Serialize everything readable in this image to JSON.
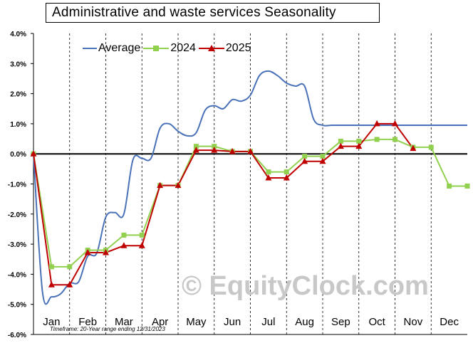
{
  "title": "Administrative and waste services Seasonality",
  "footnote": "Timeframe: 20-Year range ending 12/31/2023",
  "watermark": "© EquityClock.com",
  "colors": {
    "average": "#4a72b8",
    "y2024": "#92d050",
    "y2025": "#c00000",
    "grid": "#000000",
    "zero_line": "#000000"
  },
  "chart_data": {
    "type": "line",
    "title": "Administrative and waste services Seasonality",
    "xlabel": "",
    "ylabel": "",
    "ylim": [
      -6.0,
      4.0
    ],
    "yticks": [
      "4.0%",
      "3.0%",
      "2.0%",
      "1.0%",
      "0.0%",
      "-1.0%",
      "-2.0%",
      "-3.0%",
      "-4.0%",
      "-5.0%",
      "-6.0%"
    ],
    "categories": [
      "Jan",
      "Feb",
      "Mar",
      "Apr",
      "May",
      "Jun",
      "Jul",
      "Aug",
      "Sep",
      "Oct",
      "Nov",
      "Dec"
    ],
    "x_range": [
      0,
      24
    ],
    "grid": "vertical dashed at month boundaries",
    "legend_position": "top-left",
    "series": [
      {
        "name": "Average",
        "style": "smooth",
        "x": [
          0,
          0.5,
          1,
          1.5,
          2,
          2.5,
          3,
          3.5,
          4,
          4.5,
          5,
          5.5,
          6,
          6.5,
          7,
          7.5,
          8,
          8.5,
          9,
          9.5,
          10,
          10.5,
          11,
          11.5,
          12,
          12.5,
          13,
          13.5,
          14,
          14.5,
          15,
          15.5,
          16,
          16.5,
          17,
          17.5,
          18,
          18.5,
          19,
          19.5,
          20,
          20.5,
          21,
          21.5,
          22,
          22.5,
          23,
          23.5,
          24
        ],
        "values": [
          0.0,
          -4.6,
          -4.75,
          -4.65,
          -4.3,
          -4.25,
          -3.4,
          -3.3,
          -2.1,
          -1.95,
          -2.0,
          -0.2,
          -0.15,
          -0.15,
          0.85,
          1.0,
          0.75,
          0.6,
          0.7,
          1.45,
          1.6,
          1.5,
          1.8,
          1.75,
          1.95,
          2.6,
          2.75,
          2.6,
          2.35,
          2.25,
          2.25,
          1.15,
          0.95,
          0.95,
          0.95,
          0.95,
          0.95,
          0.95,
          0.95,
          0.95,
          0.95,
          0.95,
          0.95,
          0.95,
          0.95,
          0.95,
          0.95,
          0.95,
          0.95
        ]
      },
      {
        "name": "2024",
        "marker": "square",
        "x": [
          0,
          1,
          2,
          3,
          4,
          5,
          6,
          7,
          8,
          9,
          10,
          11,
          12,
          13,
          14,
          15,
          16,
          17,
          18,
          19,
          20,
          21,
          22,
          23,
          24
        ],
        "values": [
          0.0,
          -3.75,
          -3.75,
          -3.2,
          -3.2,
          -2.7,
          -2.7,
          -1.05,
          -1.05,
          0.25,
          0.25,
          0.08,
          0.08,
          -0.6,
          -0.6,
          -0.08,
          -0.08,
          0.42,
          0.42,
          0.48,
          0.48,
          0.22,
          0.22,
          -1.07,
          -1.07
        ]
      },
      {
        "name": "2025",
        "marker": "triangle",
        "x": [
          0,
          1,
          2,
          3,
          4,
          5,
          6,
          7,
          8,
          9,
          10,
          11,
          12,
          13,
          14,
          15,
          16,
          17,
          18,
          19,
          20,
          21,
          22
        ],
        "values": [
          0.0,
          -4.35,
          -4.35,
          -3.28,
          -3.28,
          -3.05,
          -3.05,
          -1.05,
          -1.05,
          0.12,
          0.12,
          0.08,
          0.08,
          -0.8,
          -0.8,
          -0.25,
          -0.25,
          0.25,
          0.25,
          1.0,
          1.0,
          0.18,
          null
        ]
      }
    ]
  }
}
